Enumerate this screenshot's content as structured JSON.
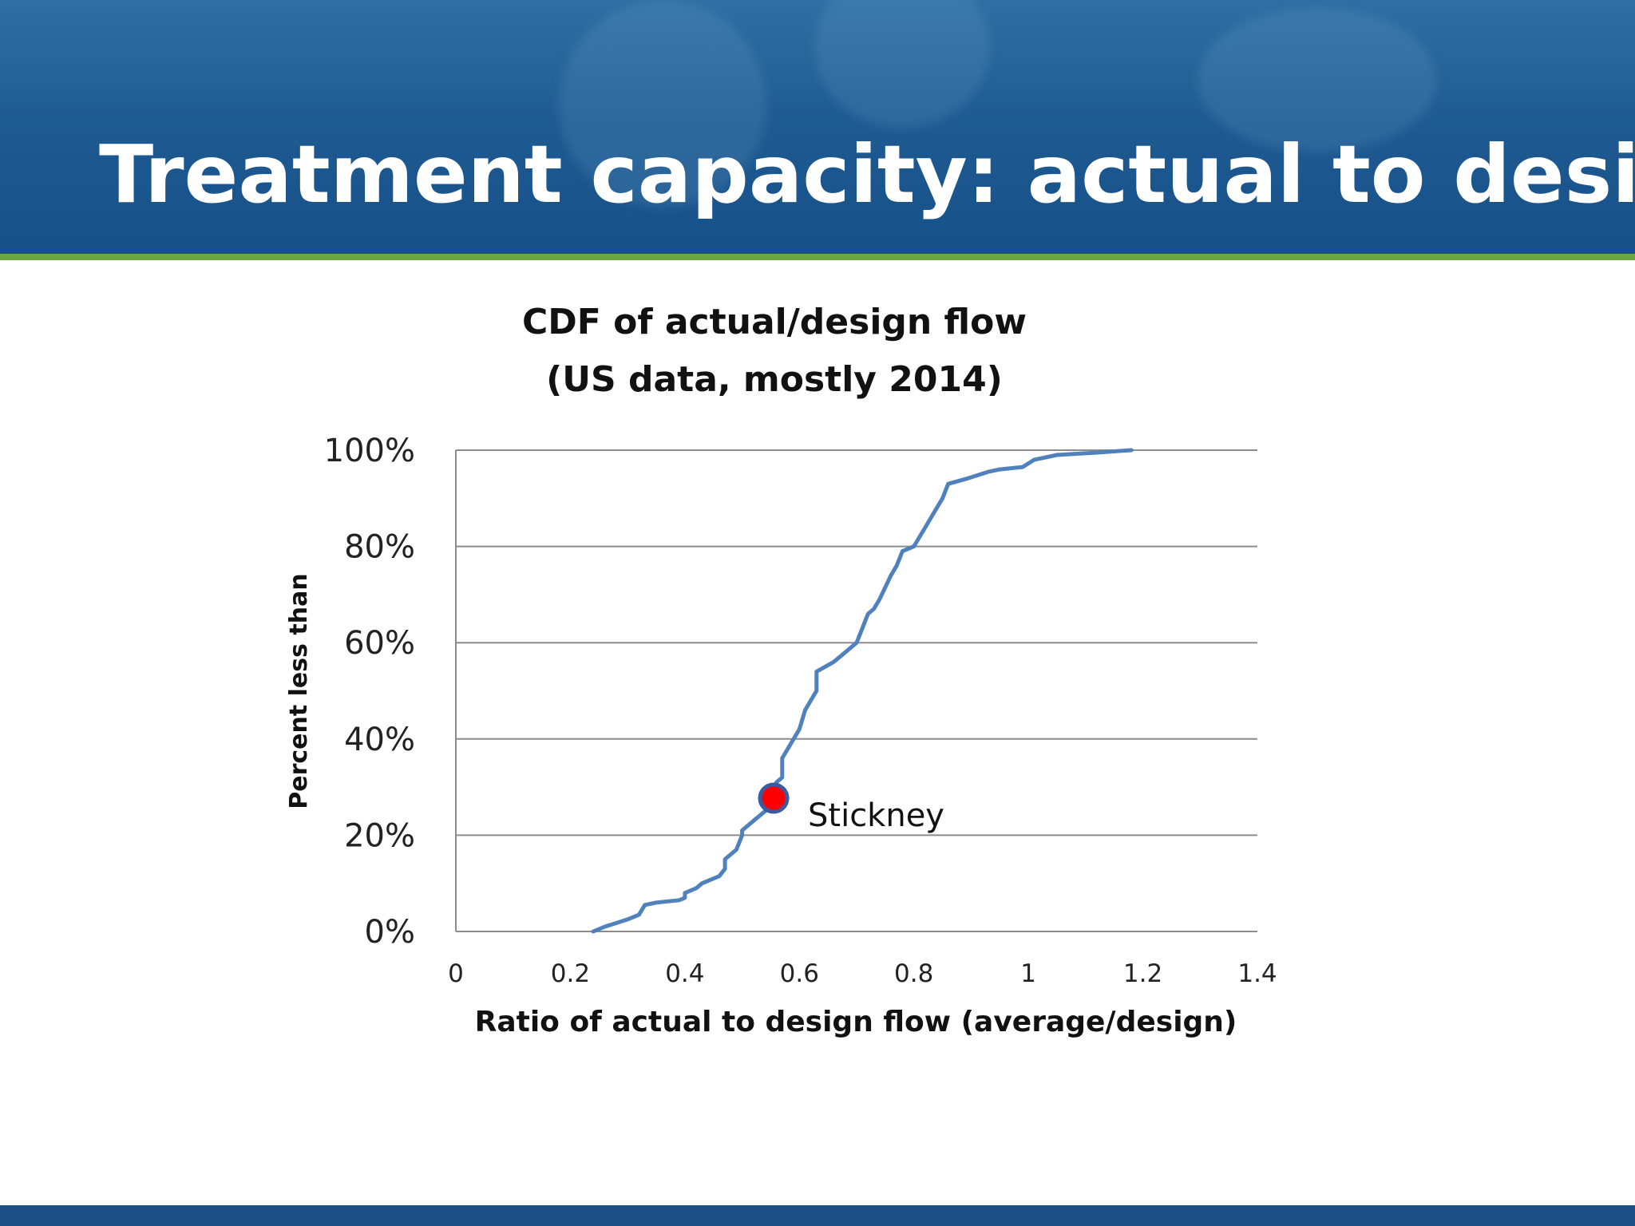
{
  "slide": {
    "title": "Treatment capacity: actual to design"
  },
  "colors": {
    "header_blue": "#1f5c92",
    "divider_green": "#6da544",
    "line_blue": "#4f81bd",
    "marker_red": "#ff0000",
    "marker_border": "#3c5aa0"
  },
  "chart_data": {
    "type": "line",
    "title": [
      "CDF of actual/design flow",
      "(US data, mostly 2014)"
    ],
    "xlabel": "Ratio of actual to design flow (average/design)",
    "ylabel": "Percent less than",
    "xlim": [
      0,
      1.4
    ],
    "ylim": [
      0,
      1
    ],
    "x_ticks": [
      0,
      0.2,
      0.4,
      0.6,
      0.8,
      1,
      1.2,
      1.4
    ],
    "x_tick_labels": [
      "0",
      "0.2",
      "0.4",
      "0.6",
      "0.8",
      "1",
      "1.2",
      "1.4"
    ],
    "y_ticks": [
      0,
      0.2,
      0.4,
      0.6,
      0.8,
      1
    ],
    "y_tick_labels": [
      "0%",
      "20%",
      "40%",
      "60%",
      "80%",
      "100%"
    ],
    "grid": true,
    "legend": "none",
    "series": [
      {
        "points": [
          [
            0.24,
            0.0
          ],
          [
            0.26,
            0.01
          ],
          [
            0.3,
            0.025
          ],
          [
            0.32,
            0.035
          ],
          [
            0.33,
            0.055
          ],
          [
            0.35,
            0.06
          ],
          [
            0.39,
            0.065
          ],
          [
            0.4,
            0.07
          ],
          [
            0.4,
            0.08
          ],
          [
            0.42,
            0.09
          ],
          [
            0.43,
            0.1
          ],
          [
            0.46,
            0.115
          ],
          [
            0.47,
            0.13
          ],
          [
            0.47,
            0.15
          ],
          [
            0.49,
            0.17
          ],
          [
            0.5,
            0.2
          ],
          [
            0.5,
            0.21
          ],
          [
            0.52,
            0.23
          ],
          [
            0.54,
            0.25
          ],
          [
            0.55,
            0.28
          ],
          [
            0.56,
            0.31
          ],
          [
            0.57,
            0.32
          ],
          [
            0.57,
            0.36
          ],
          [
            0.59,
            0.4
          ],
          [
            0.6,
            0.42
          ],
          [
            0.61,
            0.46
          ],
          [
            0.62,
            0.48
          ],
          [
            0.63,
            0.5
          ],
          [
            0.63,
            0.54
          ],
          [
            0.66,
            0.56
          ],
          [
            0.68,
            0.58
          ],
          [
            0.7,
            0.6
          ],
          [
            0.71,
            0.63
          ],
          [
            0.72,
            0.66
          ],
          [
            0.73,
            0.67
          ],
          [
            0.74,
            0.69
          ],
          [
            0.76,
            0.74
          ],
          [
            0.77,
            0.76
          ],
          [
            0.78,
            0.79
          ],
          [
            0.8,
            0.8
          ],
          [
            0.81,
            0.82
          ],
          [
            0.82,
            0.84
          ],
          [
            0.84,
            0.88
          ],
          [
            0.85,
            0.9
          ],
          [
            0.86,
            0.93
          ],
          [
            0.89,
            0.94
          ],
          [
            0.93,
            0.955
          ],
          [
            0.95,
            0.96
          ],
          [
            0.99,
            0.965
          ],
          [
            1.01,
            0.98
          ],
          [
            1.05,
            0.99
          ],
          [
            1.12,
            0.995
          ],
          [
            1.18,
            1.0
          ]
        ]
      }
    ],
    "annotations": [
      {
        "text": "Stickney",
        "x": 0.555,
        "y": 0.277
      }
    ]
  }
}
